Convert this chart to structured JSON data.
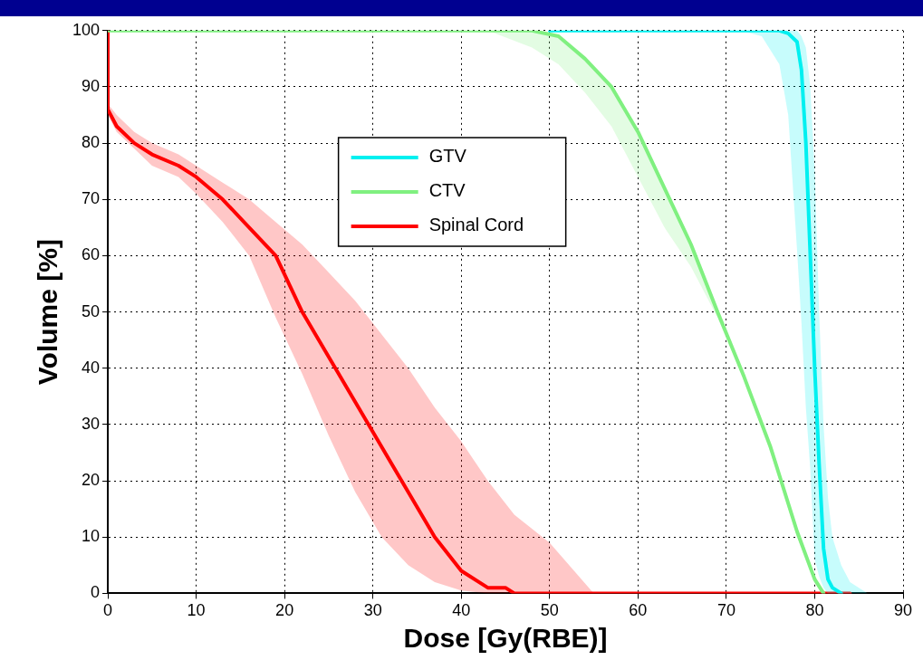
{
  "chart_data": {
    "type": "line",
    "xlabel": "Dose [Gy(RBE)]",
    "ylabel": "Volume [%]",
    "xlim": [
      0,
      90
    ],
    "ylim": [
      0,
      100
    ],
    "xticks": [
      0,
      10,
      20,
      30,
      40,
      50,
      60,
      70,
      80,
      90
    ],
    "yticks": [
      0,
      10,
      20,
      30,
      40,
      50,
      60,
      70,
      80,
      90,
      100
    ],
    "grid": true,
    "legend": "top",
    "marker": "none",
    "line_style": "solid",
    "series": [
      {
        "name": "GTV",
        "color": "#00f0f0",
        "x": [
          50,
          71.6,
          74,
          76,
          77,
          78,
          78.5,
          79,
          79.5,
          80,
          80.5,
          81,
          81.5,
          82,
          83,
          84,
          86
        ],
        "values": [
          100,
          100,
          100,
          100,
          99.5,
          98,
          93,
          80,
          60,
          40,
          23,
          8,
          2.5,
          1,
          0,
          null,
          null
        ],
        "lower": [
          100,
          100,
          99,
          94,
          85,
          61,
          48,
          33,
          22,
          6,
          3,
          1,
          0,
          0,
          0,
          0,
          0
        ],
        "upper": [
          100,
          100,
          100,
          100,
          100,
          100,
          99,
          97,
          90,
          75,
          50,
          30,
          17,
          10,
          5,
          2,
          0
        ]
      },
      {
        "name": "CTV",
        "color": "#80f080",
        "x": [
          0,
          43,
          48,
          51,
          54,
          57,
          60,
          63,
          66,
          69,
          72,
          75,
          78,
          80,
          81
        ],
        "values": [
          100,
          100,
          100,
          99,
          95,
          90,
          82,
          72,
          62,
          50,
          38.5,
          26,
          11,
          2.5,
          0
        ],
        "lower": [
          100,
          100,
          97,
          94,
          89,
          83,
          74,
          65,
          58,
          49,
          38,
          25,
          10,
          2,
          0
        ],
        "upper": [
          100,
          100,
          100,
          99,
          95,
          90,
          82,
          72,
          62,
          50,
          38.5,
          26,
          11,
          2.5,
          0
        ]
      },
      {
        "name": "Spinal Cord",
        "color": "#ff0000",
        "x": [
          0,
          0,
          1,
          3,
          5,
          8,
          10,
          13,
          16,
          19,
          22,
          25,
          28,
          31,
          34,
          37,
          40,
          43,
          45,
          46,
          50,
          55,
          60,
          84
        ],
        "values": [
          100,
          86,
          83,
          80,
          78,
          76,
          74,
          70,
          65,
          60,
          50,
          42,
          34,
          26,
          18,
          10,
          4,
          1,
          1,
          0,
          0,
          0,
          0,
          0
        ],
        "lower": [
          null,
          85,
          82,
          79,
          76,
          74,
          71,
          66,
          60,
          49,
          39,
          28,
          18,
          10,
          5,
          2,
          0.5,
          0,
          0,
          0,
          0,
          0,
          null,
          null
        ],
        "upper": [
          null,
          87,
          85,
          82,
          80,
          78,
          76,
          73,
          70,
          66,
          62,
          57,
          52,
          46,
          40,
          33,
          27,
          20,
          16,
          14,
          9,
          0,
          null,
          null
        ]
      }
    ]
  }
}
